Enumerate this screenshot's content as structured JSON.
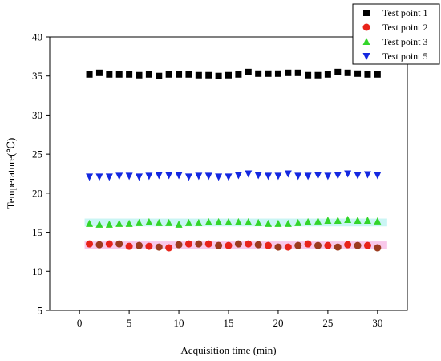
{
  "chart_data": {
    "type": "scatter",
    "title": "",
    "xlabel": "Acquisition time (min)",
    "ylabel": "Temperature(℃)",
    "xlim": [
      -3,
      33
    ],
    "ylim": [
      5,
      40
    ],
    "xticks": [
      0,
      5,
      10,
      15,
      20,
      25,
      30
    ],
    "yticks": [
      5,
      10,
      15,
      20,
      25,
      30,
      35,
      40
    ],
    "grid": false,
    "legend_position": "top-right",
    "x": [
      1,
      2,
      3,
      4,
      5,
      6,
      7,
      8,
      9,
      10,
      11,
      12,
      13,
      14,
      15,
      16,
      17,
      18,
      19,
      20,
      21,
      22,
      23,
      24,
      25,
      26,
      27,
      28,
      29,
      30
    ],
    "series": [
      {
        "name": "Test point 1",
        "marker": "square",
        "color": "#000000",
        "values": [
          35.2,
          35.4,
          35.2,
          35.2,
          35.2,
          35.1,
          35.2,
          35.0,
          35.2,
          35.2,
          35.2,
          35.1,
          35.1,
          35.0,
          35.1,
          35.2,
          35.5,
          35.3,
          35.3,
          35.3,
          35.4,
          35.4,
          35.1,
          35.1,
          35.2,
          35.5,
          35.4,
          35.3,
          35.2,
          35.2
        ]
      },
      {
        "name": "Test point 2",
        "marker": "circle",
        "color": "#e8231a",
        "highlight": "#f5b6e3",
        "values": [
          13.5,
          13.4,
          13.5,
          13.5,
          13.2,
          13.3,
          13.2,
          13.1,
          13.0,
          13.4,
          13.5,
          13.5,
          13.5,
          13.3,
          13.3,
          13.5,
          13.5,
          13.4,
          13.3,
          13.1,
          13.1,
          13.3,
          13.5,
          13.3,
          13.3,
          13.1,
          13.4,
          13.3,
          13.3,
          13.0
        ]
      },
      {
        "name": "Test point 3",
        "marker": "triangle-up",
        "color": "#33d52a",
        "highlight": "#b8f2f0",
        "values": [
          16.1,
          16.0,
          16.0,
          16.1,
          16.1,
          16.2,
          16.3,
          16.2,
          16.2,
          16.0,
          16.2,
          16.2,
          16.3,
          16.3,
          16.3,
          16.3,
          16.3,
          16.2,
          16.1,
          16.1,
          16.1,
          16.2,
          16.3,
          16.4,
          16.5,
          16.5,
          16.6,
          16.5,
          16.5,
          16.4
        ]
      },
      {
        "name": "Test point 5",
        "marker": "triangle-down",
        "color": "#1428e0",
        "values": [
          22.1,
          22.1,
          22.1,
          22.2,
          22.2,
          22.1,
          22.2,
          22.3,
          22.3,
          22.3,
          22.1,
          22.2,
          22.2,
          22.1,
          22.1,
          22.3,
          22.5,
          22.3,
          22.2,
          22.2,
          22.5,
          22.2,
          22.2,
          22.3,
          22.2,
          22.3,
          22.5,
          22.3,
          22.4,
          22.3
        ]
      }
    ]
  }
}
